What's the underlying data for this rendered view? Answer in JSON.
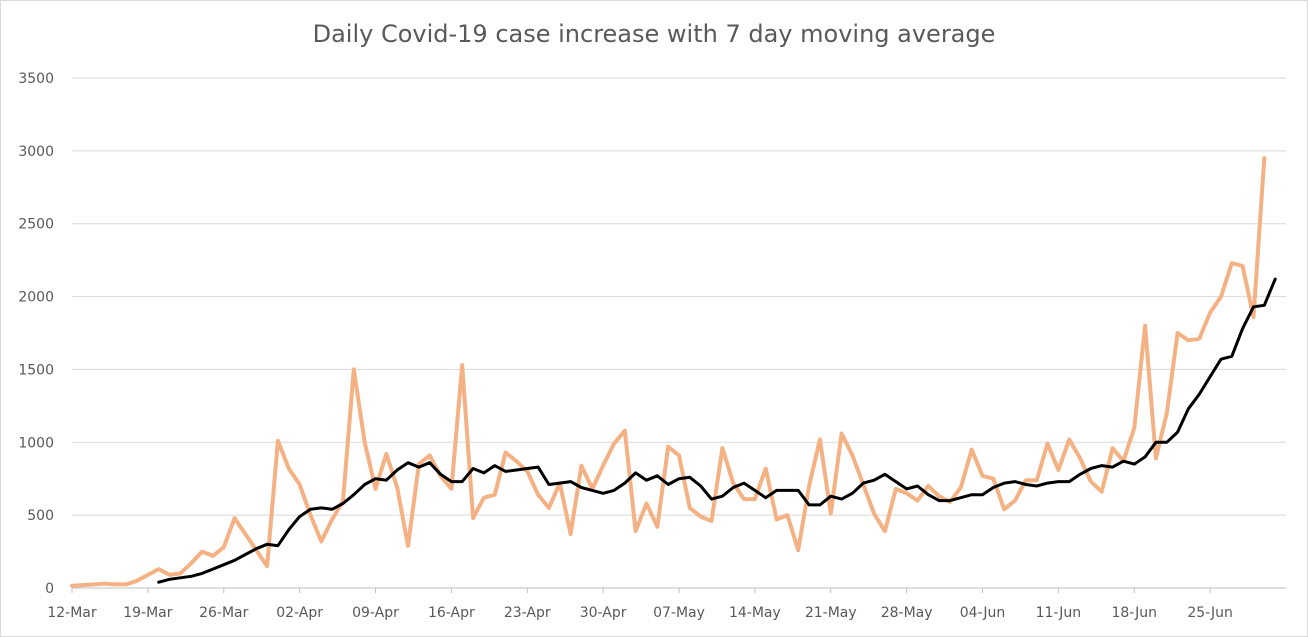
{
  "chart_data": {
    "type": "line",
    "title": "Daily Covid-19 case increase with 7 day moving average",
    "xlabel": "",
    "ylabel": "",
    "ylim": [
      0,
      3500
    ],
    "y_ticks": [
      0,
      500,
      1000,
      1500,
      2000,
      2500,
      3000,
      3500
    ],
    "x_start": "12-Mar",
    "x_ticks": [
      "12-Mar",
      "19-Mar",
      "26-Mar",
      "02-Apr",
      "09-Apr",
      "16-Apr",
      "23-Apr",
      "30-Apr",
      "07-May",
      "14-May",
      "21-May",
      "28-May",
      "04-Jun",
      "11-Jun",
      "18-Jun",
      "25-Jun"
    ],
    "grid": true,
    "legend": "none",
    "series": [
      {
        "color": "#f4b183",
        "values": [
          15,
          20,
          25,
          30,
          25,
          25,
          50,
          90,
          130,
          90,
          100,
          170,
          250,
          220,
          280,
          480,
          370,
          260,
          150,
          1010,
          820,
          710,
          500,
          320,
          470,
          600,
          1500,
          1000,
          680,
          920,
          690,
          290,
          850,
          910,
          770,
          680,
          1530,
          480,
          620,
          640,
          930,
          870,
          800,
          640,
          550,
          720,
          370,
          840,
          680,
          840,
          990,
          1080,
          390,
          580,
          420,
          970,
          910,
          550,
          490,
          460,
          960,
          720,
          610,
          610,
          820,
          470,
          500,
          260,
          700,
          1020,
          510,
          1060,
          910,
          710,
          510,
          390,
          680,
          650,
          600,
          700,
          630,
          590,
          690,
          950,
          770,
          750,
          540,
          600,
          740,
          740,
          990,
          810,
          1020,
          890,
          730,
          660,
          960,
          870,
          1100,
          1800,
          890,
          1200,
          1750,
          1700,
          1710,
          1890,
          2000,
          2230,
          2210,
          1860,
          2950
        ]
      },
      {
        "color": "#000000",
        "values": [
          null,
          null,
          null,
          null,
          null,
          null,
          null,
          null,
          40,
          60,
          70,
          80,
          100,
          130,
          160,
          190,
          230,
          270,
          300,
          290,
          400,
          490,
          540,
          550,
          540,
          580,
          640,
          710,
          750,
          740,
          810,
          860,
          830,
          860,
          780,
          730,
          730,
          820,
          790,
          840,
          800,
          810,
          820,
          830,
          710,
          720,
          730,
          690,
          670,
          650,
          670,
          720,
          790,
          740,
          770,
          710,
          750,
          760,
          700,
          610,
          630,
          690,
          720,
          670,
          620,
          670,
          670,
          670,
          570,
          570,
          630,
          610,
          650,
          720,
          740,
          780,
          730,
          680,
          700,
          640,
          600,
          600,
          620,
          640,
          640,
          690,
          720,
          730,
          710,
          700,
          720,
          730,
          730,
          780,
          820,
          840,
          830,
          870,
          850,
          900,
          1000,
          1000,
          1070,
          1230,
          1330,
          1450,
          1570,
          1590,
          1780,
          1930,
          1940,
          2120
        ]
      }
    ]
  }
}
